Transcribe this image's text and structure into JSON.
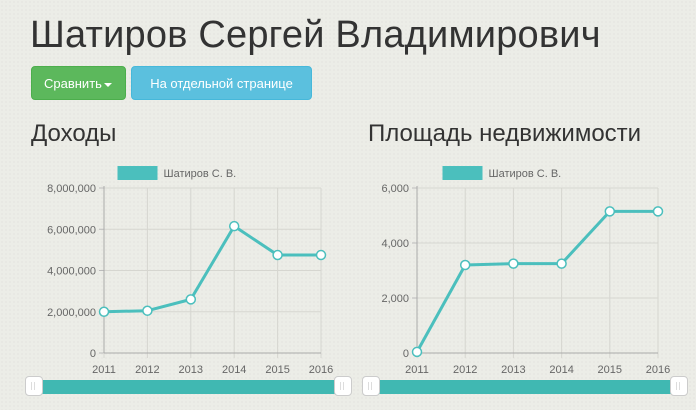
{
  "page": {
    "title": "Шатиров Сергей Владимирович",
    "compare_button": "Сравнить",
    "separate_page_button": "На отдельной странице"
  },
  "colors": {
    "series": "#4bbfbd",
    "compare_button": "#5cb85c",
    "page_button": "#5bc0de",
    "slider": "#40b8b2"
  },
  "sections": {
    "income_title": "Доходы",
    "property_title": "Площадь недвижимости"
  },
  "chart_data": [
    {
      "type": "line",
      "title": "Доходы",
      "legend": "Шатиров С. В.",
      "legend_position": "top-center",
      "x": [
        "2011",
        "2012",
        "2013",
        "2014",
        "2015",
        "2016"
      ],
      "series": [
        {
          "name": "Шатиров С. В.",
          "values": [
            2000000,
            2050000,
            2600000,
            6150000,
            4750000,
            4750000
          ]
        }
      ],
      "ylim": [
        0,
        8000000
      ],
      "yticks": [
        0,
        2000000,
        4000000,
        6000000,
        8000000
      ],
      "ytick_labels": [
        "0",
        "2,000,000",
        "4,000,000",
        "6,000,000",
        "8,000,000"
      ],
      "grid": true
    },
    {
      "type": "line",
      "title": "Площадь недвижимости",
      "legend": "Шатиров С. В.",
      "legend_position": "top-center",
      "x": [
        "2011",
        "2012",
        "2013",
        "2014",
        "2015",
        "2016"
      ],
      "series": [
        {
          "name": "Шатиров С. В.",
          "values": [
            40,
            3200,
            3250,
            3250,
            5150,
            5150
          ]
        }
      ],
      "ylim": [
        0,
        6000
      ],
      "yticks": [
        0,
        2000,
        4000,
        6000
      ],
      "ytick_labels": [
        "0",
        "2,000",
        "4,000",
        "6,000"
      ],
      "grid": true
    }
  ]
}
